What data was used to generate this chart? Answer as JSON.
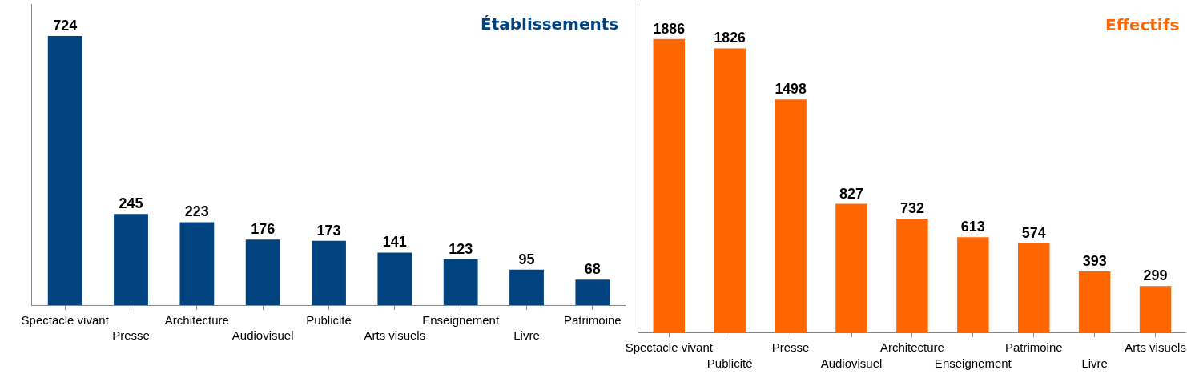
{
  "chart_data": [
    {
      "type": "bar",
      "title": "Établissements",
      "categories": [
        "Spectacle vivant",
        "Presse",
        "Architecture",
        "Audiovisuel",
        "Publicité",
        "Arts visuels",
        "Enseignement",
        "Livre",
        "Patrimoine"
      ],
      "values": [
        724,
        245,
        223,
        176,
        173,
        141,
        123,
        95,
        68
      ],
      "color": "#00437f",
      "data_labels": true
    },
    {
      "type": "bar",
      "title": "Effectifs",
      "categories": [
        "Spectacle vivant",
        "Publicité",
        "Presse",
        "Audiovisuel",
        "Architecture",
        "Enseignement",
        "Patrimoine",
        "Livre",
        "Arts visuels"
      ],
      "values": [
        1886,
        1826,
        1498,
        827,
        732,
        613,
        574,
        393,
        299
      ],
      "color": "#ff6600",
      "data_labels": true
    }
  ]
}
